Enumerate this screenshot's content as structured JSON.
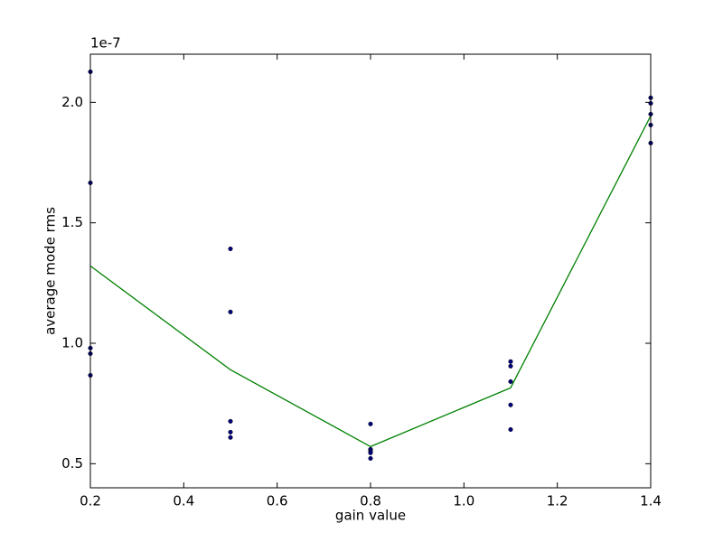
{
  "chart_data": {
    "type": "scatter",
    "xlabel": "gain value",
    "ylabel": "average mode rms",
    "y_offset_label": "1e-7",
    "xlim": [
      0.2,
      1.4
    ],
    "ylim": [
      0.4,
      2.2
    ],
    "xticks": [
      0.2,
      0.4,
      0.6,
      0.8,
      {
        "value": 1,
        "label": "1.0"
      },
      1.2,
      1.4
    ],
    "yticks": [
      0.5,
      {
        "value": 1,
        "label": "1.0"
      },
      1.5,
      {
        "value": 2,
        "label": "2.0"
      }
    ],
    "series": [
      {
        "type": "scatter",
        "color": "#000080",
        "x": [
          0.2,
          0.2,
          0.2,
          0.2,
          0.2,
          0.5,
          0.5,
          0.5,
          0.5,
          0.5,
          0.8,
          0.8,
          0.8,
          0.8,
          0.8,
          1.1,
          1.1,
          1.1,
          1.1,
          1.1,
          1.4,
          1.4,
          1.4,
          1.4,
          1.4
        ],
        "values": [
          2.127,
          1.666,
          0.98,
          0.957,
          0.867,
          1.392,
          1.13,
          0.676,
          0.631,
          0.609,
          0.665,
          0.56,
          0.552,
          0.545,
          0.522,
          0.924,
          0.905,
          0.841,
          0.744,
          0.642,
          2.019,
          1.996,
          1.951,
          1.906,
          1.831
        ]
      },
      {
        "type": "line",
        "color": "#008000",
        "x": [
          0.2,
          0.5,
          0.8,
          1.1,
          1.4
        ],
        "values": [
          1.321,
          0.89,
          0.571,
          0.815,
          1.944
        ]
      }
    ]
  }
}
